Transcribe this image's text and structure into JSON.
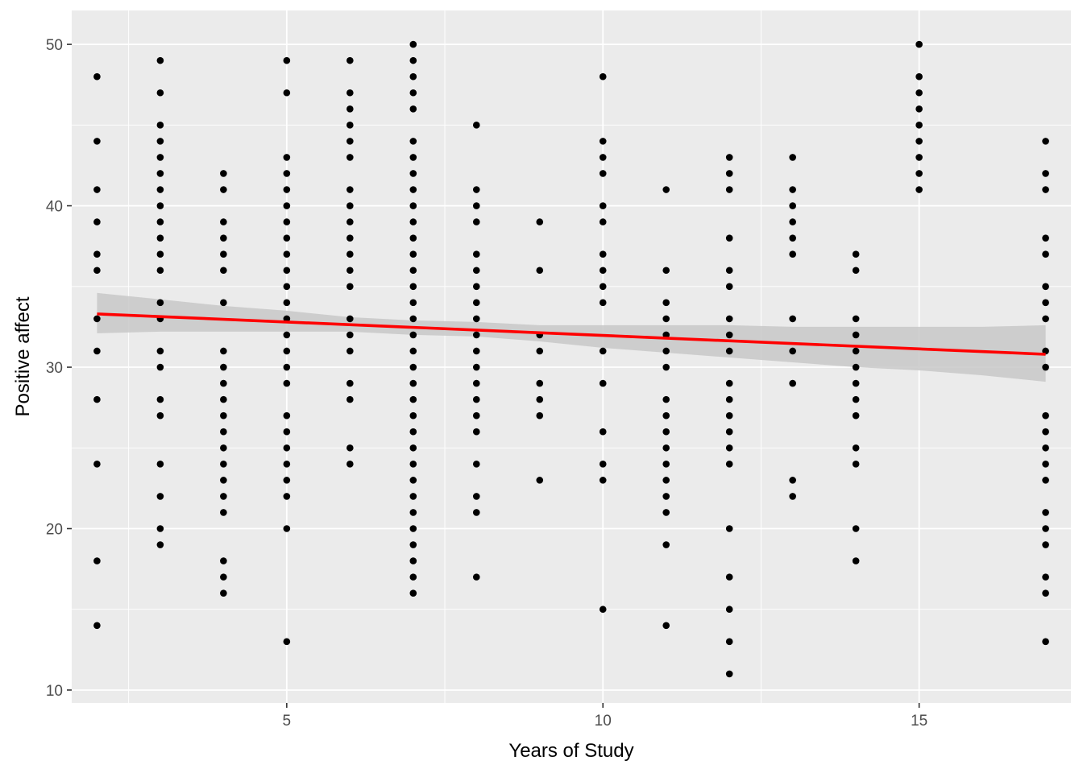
{
  "chart_data": {
    "type": "scatter",
    "title": "",
    "xlabel": "Years of Study",
    "ylabel": "Positive affect",
    "xlim": [
      1.6,
      17.4
    ],
    "ylim": [
      9.2,
      52.1
    ],
    "x_ticks": [
      5,
      10,
      15
    ],
    "y_ticks": [
      10,
      20,
      30,
      40,
      50
    ],
    "x_tick_labels": [
      "5",
      "10",
      "15"
    ],
    "y_tick_labels": [
      "10",
      "20",
      "30",
      "40",
      "50"
    ],
    "grid": true,
    "legend": "none",
    "colors": {
      "panel": "#ebebeb",
      "grid": "#ffffff",
      "points": "#000000",
      "fit_line": "#ff0000",
      "confidence_band": "#c8c8c8"
    },
    "points": [
      {
        "x": 2,
        "ys": [
          48,
          44,
          41,
          39,
          37,
          36,
          33,
          31,
          28,
          24,
          18,
          14
        ]
      },
      {
        "x": 3,
        "ys": [
          49,
          47,
          45,
          44,
          43,
          42,
          41,
          40,
          39,
          38,
          37,
          36,
          34,
          33,
          31,
          30,
          28,
          27,
          24,
          22,
          20,
          19
        ]
      },
      {
        "x": 4,
        "ys": [
          42,
          41,
          39,
          38,
          37,
          36,
          34,
          31,
          30,
          29,
          28,
          27,
          26,
          25,
          24,
          23,
          22,
          21,
          18,
          17,
          16
        ]
      },
      {
        "x": 5,
        "ys": [
          49,
          47,
          43,
          42,
          41,
          40,
          39,
          38,
          37,
          36,
          35,
          34,
          33,
          32,
          31,
          30,
          29,
          27,
          26,
          25,
          24,
          23,
          22,
          20,
          13
        ]
      },
      {
        "x": 6,
        "ys": [
          49,
          47,
          46,
          45,
          44,
          43,
          41,
          40,
          39,
          38,
          37,
          36,
          35,
          33,
          32,
          31,
          29,
          28,
          25,
          24
        ]
      },
      {
        "x": 7,
        "ys": [
          50,
          49,
          48,
          47,
          46,
          44,
          43,
          42,
          41,
          40,
          39,
          38,
          37,
          36,
          35,
          34,
          33,
          32,
          31,
          30,
          29,
          28,
          27,
          26,
          25,
          24,
          23,
          22,
          21,
          20,
          19,
          18,
          17,
          16
        ]
      },
      {
        "x": 8,
        "ys": [
          45,
          41,
          40,
          39,
          37,
          36,
          35,
          34,
          33,
          32,
          31,
          30,
          29,
          28,
          27,
          26,
          24,
          22,
          21,
          17
        ]
      },
      {
        "x": 9,
        "ys": [
          39,
          36,
          32,
          31,
          29,
          28,
          27,
          23
        ]
      },
      {
        "x": 10,
        "ys": [
          48,
          44,
          43,
          42,
          40,
          39,
          37,
          36,
          35,
          34,
          31,
          29,
          26,
          24,
          23,
          15
        ]
      },
      {
        "x": 11,
        "ys": [
          41,
          36,
          34,
          33,
          32,
          31,
          30,
          28,
          27,
          26,
          25,
          24,
          23,
          22,
          21,
          19,
          14
        ]
      },
      {
        "x": 12,
        "ys": [
          43,
          42,
          41,
          38,
          36,
          35,
          33,
          32,
          31,
          29,
          28,
          27,
          26,
          25,
          24,
          20,
          17,
          15,
          13,
          11
        ]
      },
      {
        "x": 13,
        "ys": [
          43,
          41,
          40,
          39,
          38,
          37,
          33,
          31,
          29,
          23,
          22
        ]
      },
      {
        "x": 14,
        "ys": [
          37,
          36,
          33,
          32,
          31,
          30,
          29,
          28,
          27,
          25,
          24,
          20,
          18
        ]
      },
      {
        "x": 15,
        "ys": [
          50,
          48,
          47,
          46,
          45,
          44,
          43,
          42,
          41
        ]
      },
      {
        "x": 17,
        "ys": [
          44,
          42,
          41,
          38,
          37,
          35,
          34,
          33,
          31,
          30,
          27,
          26,
          25,
          24,
          23,
          21,
          20,
          19,
          17,
          16,
          13
        ]
      }
    ],
    "fit": {
      "method": "linear",
      "x": [
        2,
        17
      ],
      "y": [
        33.3,
        30.8
      ],
      "ci_lower": [
        32.1,
        29.1
      ],
      "ci_upper": [
        34.6,
        32.6
      ],
      "ci_x": [
        2,
        3,
        4,
        5,
        6,
        7,
        8,
        9,
        10,
        11,
        12,
        13,
        14,
        15,
        16,
        17
      ],
      "ci_lower_all": [
        32.1,
        32.2,
        32.2,
        32.2,
        32.2,
        32.0,
        31.9,
        31.6,
        31.2,
        30.9,
        30.6,
        30.3,
        30.0,
        29.8,
        29.5,
        29.1
      ],
      "ci_upper_all": [
        34.6,
        34.2,
        33.8,
        33.5,
        33.1,
        32.9,
        32.8,
        32.6,
        32.6,
        32.6,
        32.6,
        32.5,
        32.5,
        32.5,
        32.5,
        32.6
      ]
    }
  }
}
